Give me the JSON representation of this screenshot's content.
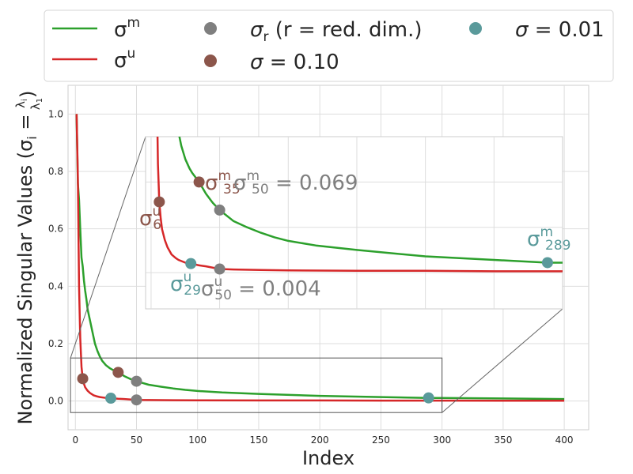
{
  "chart_data": {
    "type": "line",
    "title": "",
    "xlabel": "Index",
    "ylabel": "Normalized Singular Values (σ",
    "ylabel_sub": "i",
    "ylabel_eq": " = ",
    "ylabel_frac_num": "λ",
    "ylabel_frac_num_sub": "i",
    "ylabel_frac_den": "λ",
    "ylabel_frac_den_sub": "1",
    "ylabel_close": ")",
    "xlim": [
      -6,
      420
    ],
    "ylim": [
      -0.1,
      1.1
    ],
    "xticks": [
      0,
      50,
      100,
      150,
      200,
      250,
      300,
      350,
      400
    ],
    "yticks": [
      0.0,
      0.2,
      0.4,
      0.6,
      0.8,
      1.0
    ],
    "grid": true,
    "legend_placement": "top",
    "series": [
      {
        "key": "m",
        "color": "#2ca02c",
        "x": [
          1,
          2,
          3,
          4,
          5,
          6,
          7,
          8,
          9,
          10,
          12,
          14,
          16,
          18,
          20,
          22,
          25,
          28,
          30,
          35,
          40,
          45,
          50,
          60,
          70,
          80,
          90,
          100,
          120,
          150,
          200,
          250,
          289,
          300,
          350,
          400
        ],
        "values": [
          1.0,
          0.76,
          0.7,
          0.6,
          0.5,
          0.47,
          0.42,
          0.385,
          0.355,
          0.32,
          0.28,
          0.24,
          0.2,
          0.175,
          0.155,
          0.14,
          0.125,
          0.115,
          0.11,
          0.1,
          0.087,
          0.077,
          0.069,
          0.057,
          0.05,
          0.044,
          0.039,
          0.035,
          0.03,
          0.025,
          0.018,
          0.014,
          0.011,
          0.011,
          0.009,
          0.007
        ]
      },
      {
        "key": "u",
        "color": "#d62728",
        "x": [
          1,
          2,
          3,
          4,
          5,
          6,
          7,
          8,
          10,
          12,
          15,
          18,
          20,
          25,
          29,
          35,
          40,
          50,
          60,
          80,
          100,
          150,
          200,
          250,
          300,
          350,
          400
        ],
        "values": [
          1.0,
          0.78,
          0.4,
          0.22,
          0.12,
          0.078,
          0.06,
          0.048,
          0.036,
          0.028,
          0.02,
          0.016,
          0.014,
          0.011,
          0.01,
          0.008,
          0.007,
          0.004,
          0.0035,
          0.003,
          0.0025,
          0.002,
          0.002,
          0.0015,
          0.0015,
          0.0012,
          0.001
        ]
      }
    ],
    "markers": [
      {
        "id": "s6",
        "x": 6,
        "y": 0.078,
        "color": "#8c564b"
      },
      {
        "id": "s35",
        "x": 35,
        "y": 0.1,
        "color": "#8c564b"
      },
      {
        "id": "s50m",
        "x": 50,
        "y": 0.069,
        "color": "#7f7f7f"
      },
      {
        "id": "s50u",
        "x": 50,
        "y": 0.004,
        "color": "#7f7f7f"
      },
      {
        "id": "s29",
        "x": 29,
        "y": 0.01,
        "color": "#5a9a9b"
      },
      {
        "id": "s289",
        "x": 289,
        "y": 0.011,
        "color": "#5a9a9b"
      }
    ],
    "inset": {
      "xlim": [
        -4,
        300
      ],
      "ylim": [
        -0.04,
        0.15
      ],
      "annotations": [
        {
          "id": "a6",
          "base": "σ",
          "sup": "u",
          "sub": "6",
          "color": "#8c564b"
        },
        {
          "id": "a35",
          "base": "σ",
          "sup": "m",
          "sub": "35",
          "color": "#8c564b"
        },
        {
          "id": "a50m",
          "base": "σ",
          "sup": "m",
          "sub": "50",
          "tail": " = 0.069",
          "color": "#7f7f7f"
        },
        {
          "id": "a289",
          "base": "σ",
          "sup": "m",
          "sub": "289",
          "color": "#5a9a9b"
        },
        {
          "id": "a29",
          "base": "σ",
          "sup": "u",
          "sub": "29",
          "color": "#5a9a9b"
        },
        {
          "id": "a50u",
          "base": "σ",
          "sup": "u",
          "sub": "50",
          "tail": " = 0.004",
          "color": "#7f7f7f"
        }
      ]
    },
    "legend": {
      "lines": [
        {
          "base": "σ",
          "sup": "m",
          "color": "#2ca02c"
        },
        {
          "base": "σ",
          "sup": "u",
          "color": "#d62728"
        }
      ],
      "dots": [
        {
          "sym": "σ",
          "sub": "r",
          "text": " (r = red. dim.)",
          "color": "#7f7f7f"
        },
        {
          "sym": "σ",
          "text": " = 0.10",
          "color": "#8c564b"
        },
        {
          "sym": "σ",
          "text": " = 0.01",
          "color": "#5a9a9b"
        }
      ]
    }
  }
}
